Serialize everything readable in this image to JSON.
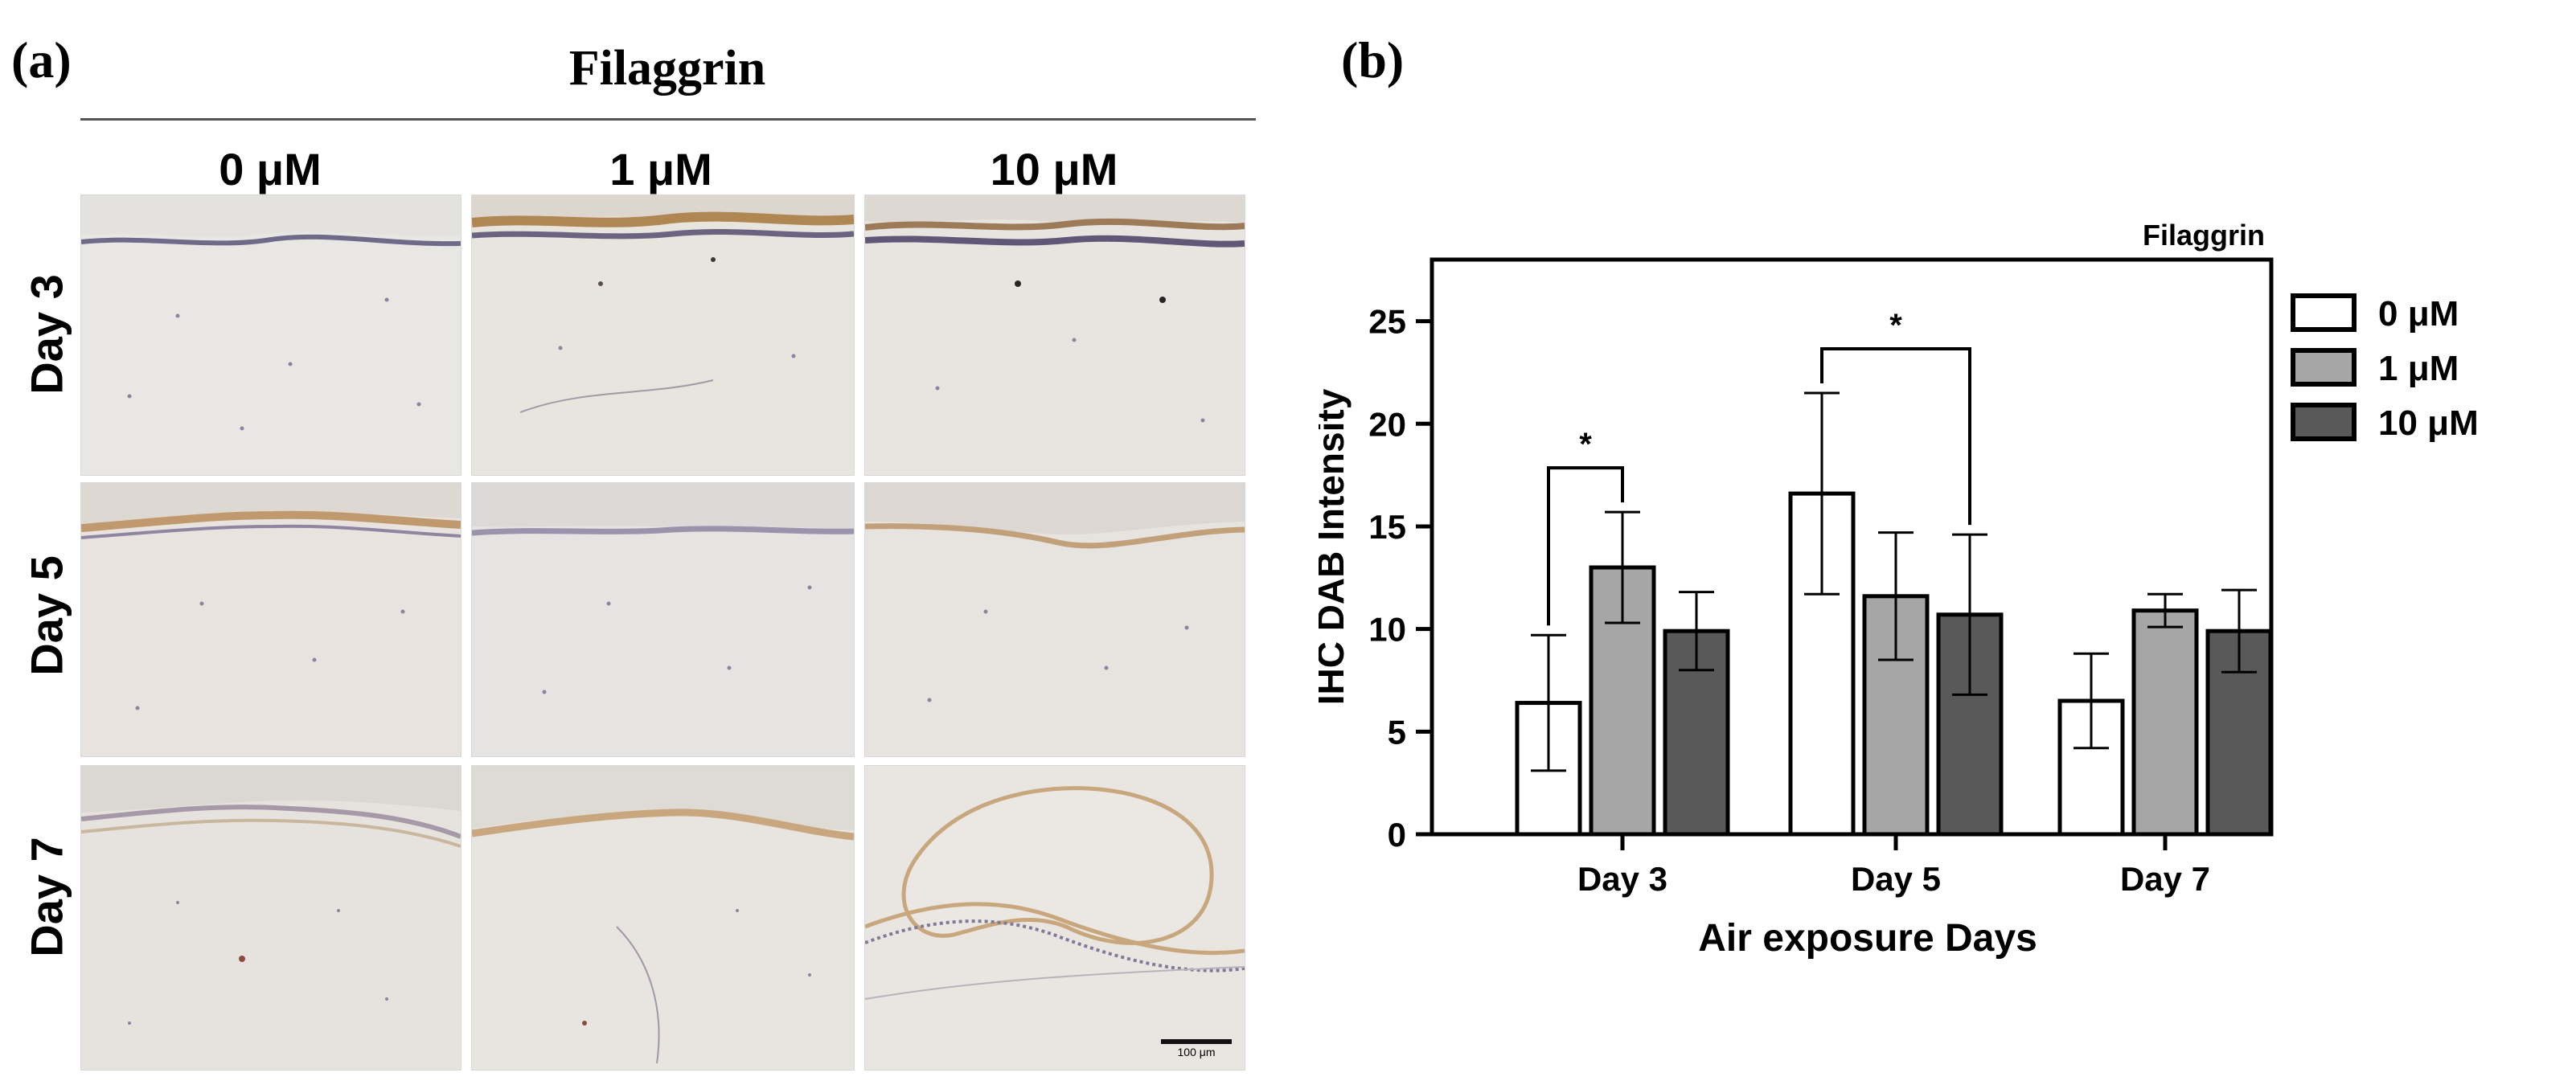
{
  "panel_a": {
    "label": "(a)",
    "title": "Filaggrin",
    "columns": [
      "0 μM",
      "1 μM",
      "10 μM"
    ],
    "rows": [
      "Day 3",
      "Day 5",
      "Day 7"
    ],
    "scale_bar": "100 μm"
  },
  "panel_b": {
    "label": "(b)"
  },
  "chart_data": {
    "type": "bar",
    "title": "Filaggrin",
    "xlabel": "Air exposure Days",
    "ylabel": "IHC DAB Intensity",
    "categories": [
      "Day 3",
      "Day 5",
      "Day 7"
    ],
    "ylim": [
      0,
      28
    ],
    "yticks": [
      0,
      5,
      10,
      15,
      20,
      25
    ],
    "legend_position": "right",
    "series": [
      {
        "name": "0 μM",
        "color": "#ffffff",
        "values": [
          6.4,
          16.6,
          6.5
        ],
        "errors": [
          3.3,
          4.9,
          2.3
        ]
      },
      {
        "name": "1 μM",
        "color": "#a6a6a6",
        "values": [
          13.0,
          11.6,
          10.9
        ],
        "errors": [
          2.7,
          3.1,
          0.8
        ]
      },
      {
        "name": "10 μM",
        "color": "#595959",
        "values": [
          9.9,
          10.7,
          9.9
        ],
        "errors": [
          1.9,
          3.9,
          2.0
        ]
      }
    ],
    "significance": [
      {
        "category": "Day 3",
        "from_series": 0,
        "to_series": 1,
        "label": "*"
      },
      {
        "category": "Day 5",
        "from_series": 0,
        "to_series": 2,
        "label": "*"
      }
    ]
  }
}
